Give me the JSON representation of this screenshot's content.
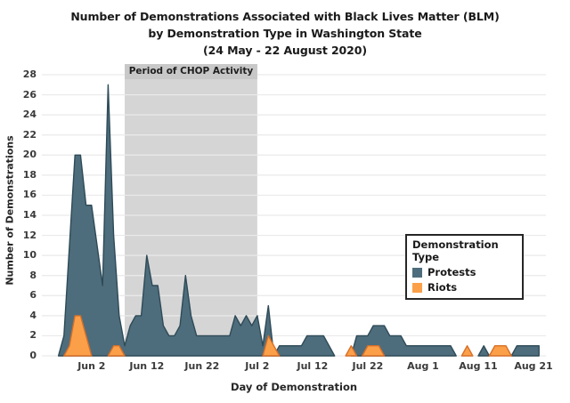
{
  "title": {
    "line1": "Number of Demonstrations Associated with Black Lives Matter (BLM)",
    "line2": "by Demonstration Type in Washington State",
    "line3": "(24 May - 22 August 2020)"
  },
  "y_axis": {
    "title": "Number of Demonstrations",
    "ticks": [
      0,
      2,
      4,
      6,
      8,
      10,
      12,
      14,
      16,
      18,
      20,
      22,
      24,
      26,
      28
    ]
  },
  "x_axis": {
    "title": "Day of Demonstration",
    "ticks": [
      {
        "label": "Jun 2",
        "day": 9
      },
      {
        "label": "Jun 12",
        "day": 19
      },
      {
        "label": "Jun 22",
        "day": 29
      },
      {
        "label": "Jul 2",
        "day": 39
      },
      {
        "label": "Jul 12",
        "day": 49
      },
      {
        "label": "Jul 22",
        "day": 59
      },
      {
        "label": "Aug 1",
        "day": 69
      },
      {
        "label": "Aug 11",
        "day": 79
      },
      {
        "label": "Aug 21",
        "day": 89
      }
    ]
  },
  "legend": {
    "title": "Demonstration Type",
    "items": [
      {
        "label": "Protests",
        "color": "#4e6d7c",
        "stroke": "#2e4a57"
      },
      {
        "label": "Riots",
        "color": "#fba049",
        "stroke": "#d86f28"
      }
    ]
  },
  "annotation": {
    "label": "Period of CHOP Activity",
    "start_day": 15,
    "end_day": 39,
    "fill": "#d5d5d5",
    "label_bg": "#c8c8c8"
  },
  "chart_data": {
    "type": "area",
    "title": "Number of Demonstrations Associated with Black Lives Matter (BLM) by Demonstration Type in Washington State (24 May - 22 August 2020)",
    "xlabel": "Day of Demonstration",
    "ylabel": "Number of Demonstrations",
    "x_unit": "days since 24 May 2020 (index 0 = May 24, index 90 = Aug 22)",
    "x_range_days": [
      0,
      90
    ],
    "ylim": [
      0,
      28
    ],
    "grid": "horizontal",
    "legend_position": "right-middle",
    "annotation_region": {
      "label": "Period of CHOP Activity",
      "from_day": 15,
      "to_day": 39
    },
    "series": [
      {
        "name": "Protests",
        "color": "#4e6d7c",
        "stroke": "#2e4a57",
        "values": [
          0,
          0,
          0,
          0,
          2,
          11,
          20,
          20,
          15,
          15,
          11,
          7,
          27,
          12,
          4,
          1,
          3,
          4,
          4,
          10,
          7,
          7,
          3,
          2,
          2,
          3,
          8,
          4,
          2,
          2,
          2,
          2,
          2,
          2,
          2,
          4,
          3,
          4,
          3,
          4,
          1,
          5,
          0,
          1,
          1,
          1,
          1,
          1,
          2,
          2,
          2,
          2,
          1,
          0,
          0,
          0,
          0,
          2,
          2,
          2,
          3,
          3,
          3,
          2,
          2,
          2,
          1,
          1,
          1,
          1,
          1,
          1,
          1,
          1,
          1,
          0,
          0,
          0,
          0,
          0,
          1,
          0,
          0,
          0,
          0,
          0,
          1,
          1,
          1,
          1,
          1
        ]
      },
      {
        "name": "Riots",
        "color": "#fba049",
        "stroke": "#d86f28",
        "values": [
          0,
          0,
          0,
          0,
          0,
          1,
          4,
          4,
          2,
          0,
          0,
          0,
          0,
          1,
          1,
          0,
          0,
          0,
          0,
          0,
          0,
          0,
          0,
          0,
          0,
          0,
          0,
          0,
          0,
          0,
          0,
          0,
          0,
          0,
          0,
          0,
          0,
          0,
          0,
          0,
          0,
          2,
          1,
          0,
          0,
          0,
          0,
          0,
          0,
          0,
          0,
          0,
          0,
          0,
          0,
          0,
          1,
          0,
          0,
          1,
          1,
          1,
          0,
          0,
          0,
          0,
          0,
          0,
          0,
          0,
          0,
          0,
          0,
          0,
          0,
          0,
          0,
          1,
          0,
          0,
          0,
          0,
          1,
          1,
          1,
          0,
          0,
          0,
          0,
          0,
          0
        ]
      }
    ]
  }
}
